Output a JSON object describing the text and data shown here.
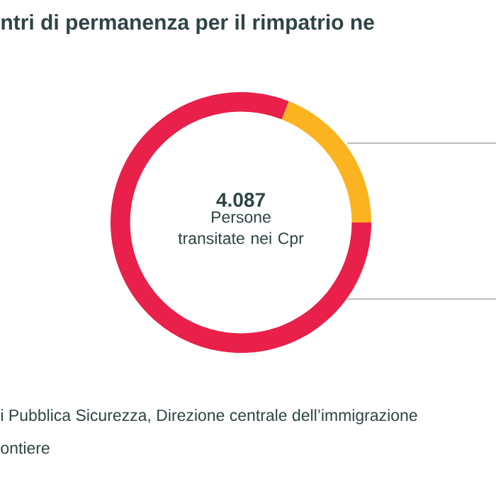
{
  "chart_data": {
    "type": "donut",
    "title": "ntri di permanenza per il rimpatrio ne",
    "categories": [
      null,
      null
    ],
    "values": [
      81,
      19
    ],
    "colors": [
      "#e8204a",
      "#fbb41f"
    ],
    "annotations": [
      "4.087",
      "Persone transitate nei Cpr",
      "i Pubblica Sicurezza, Direzione centrale dell’immigrazione",
      "ontiere"
    ]
  }
}
